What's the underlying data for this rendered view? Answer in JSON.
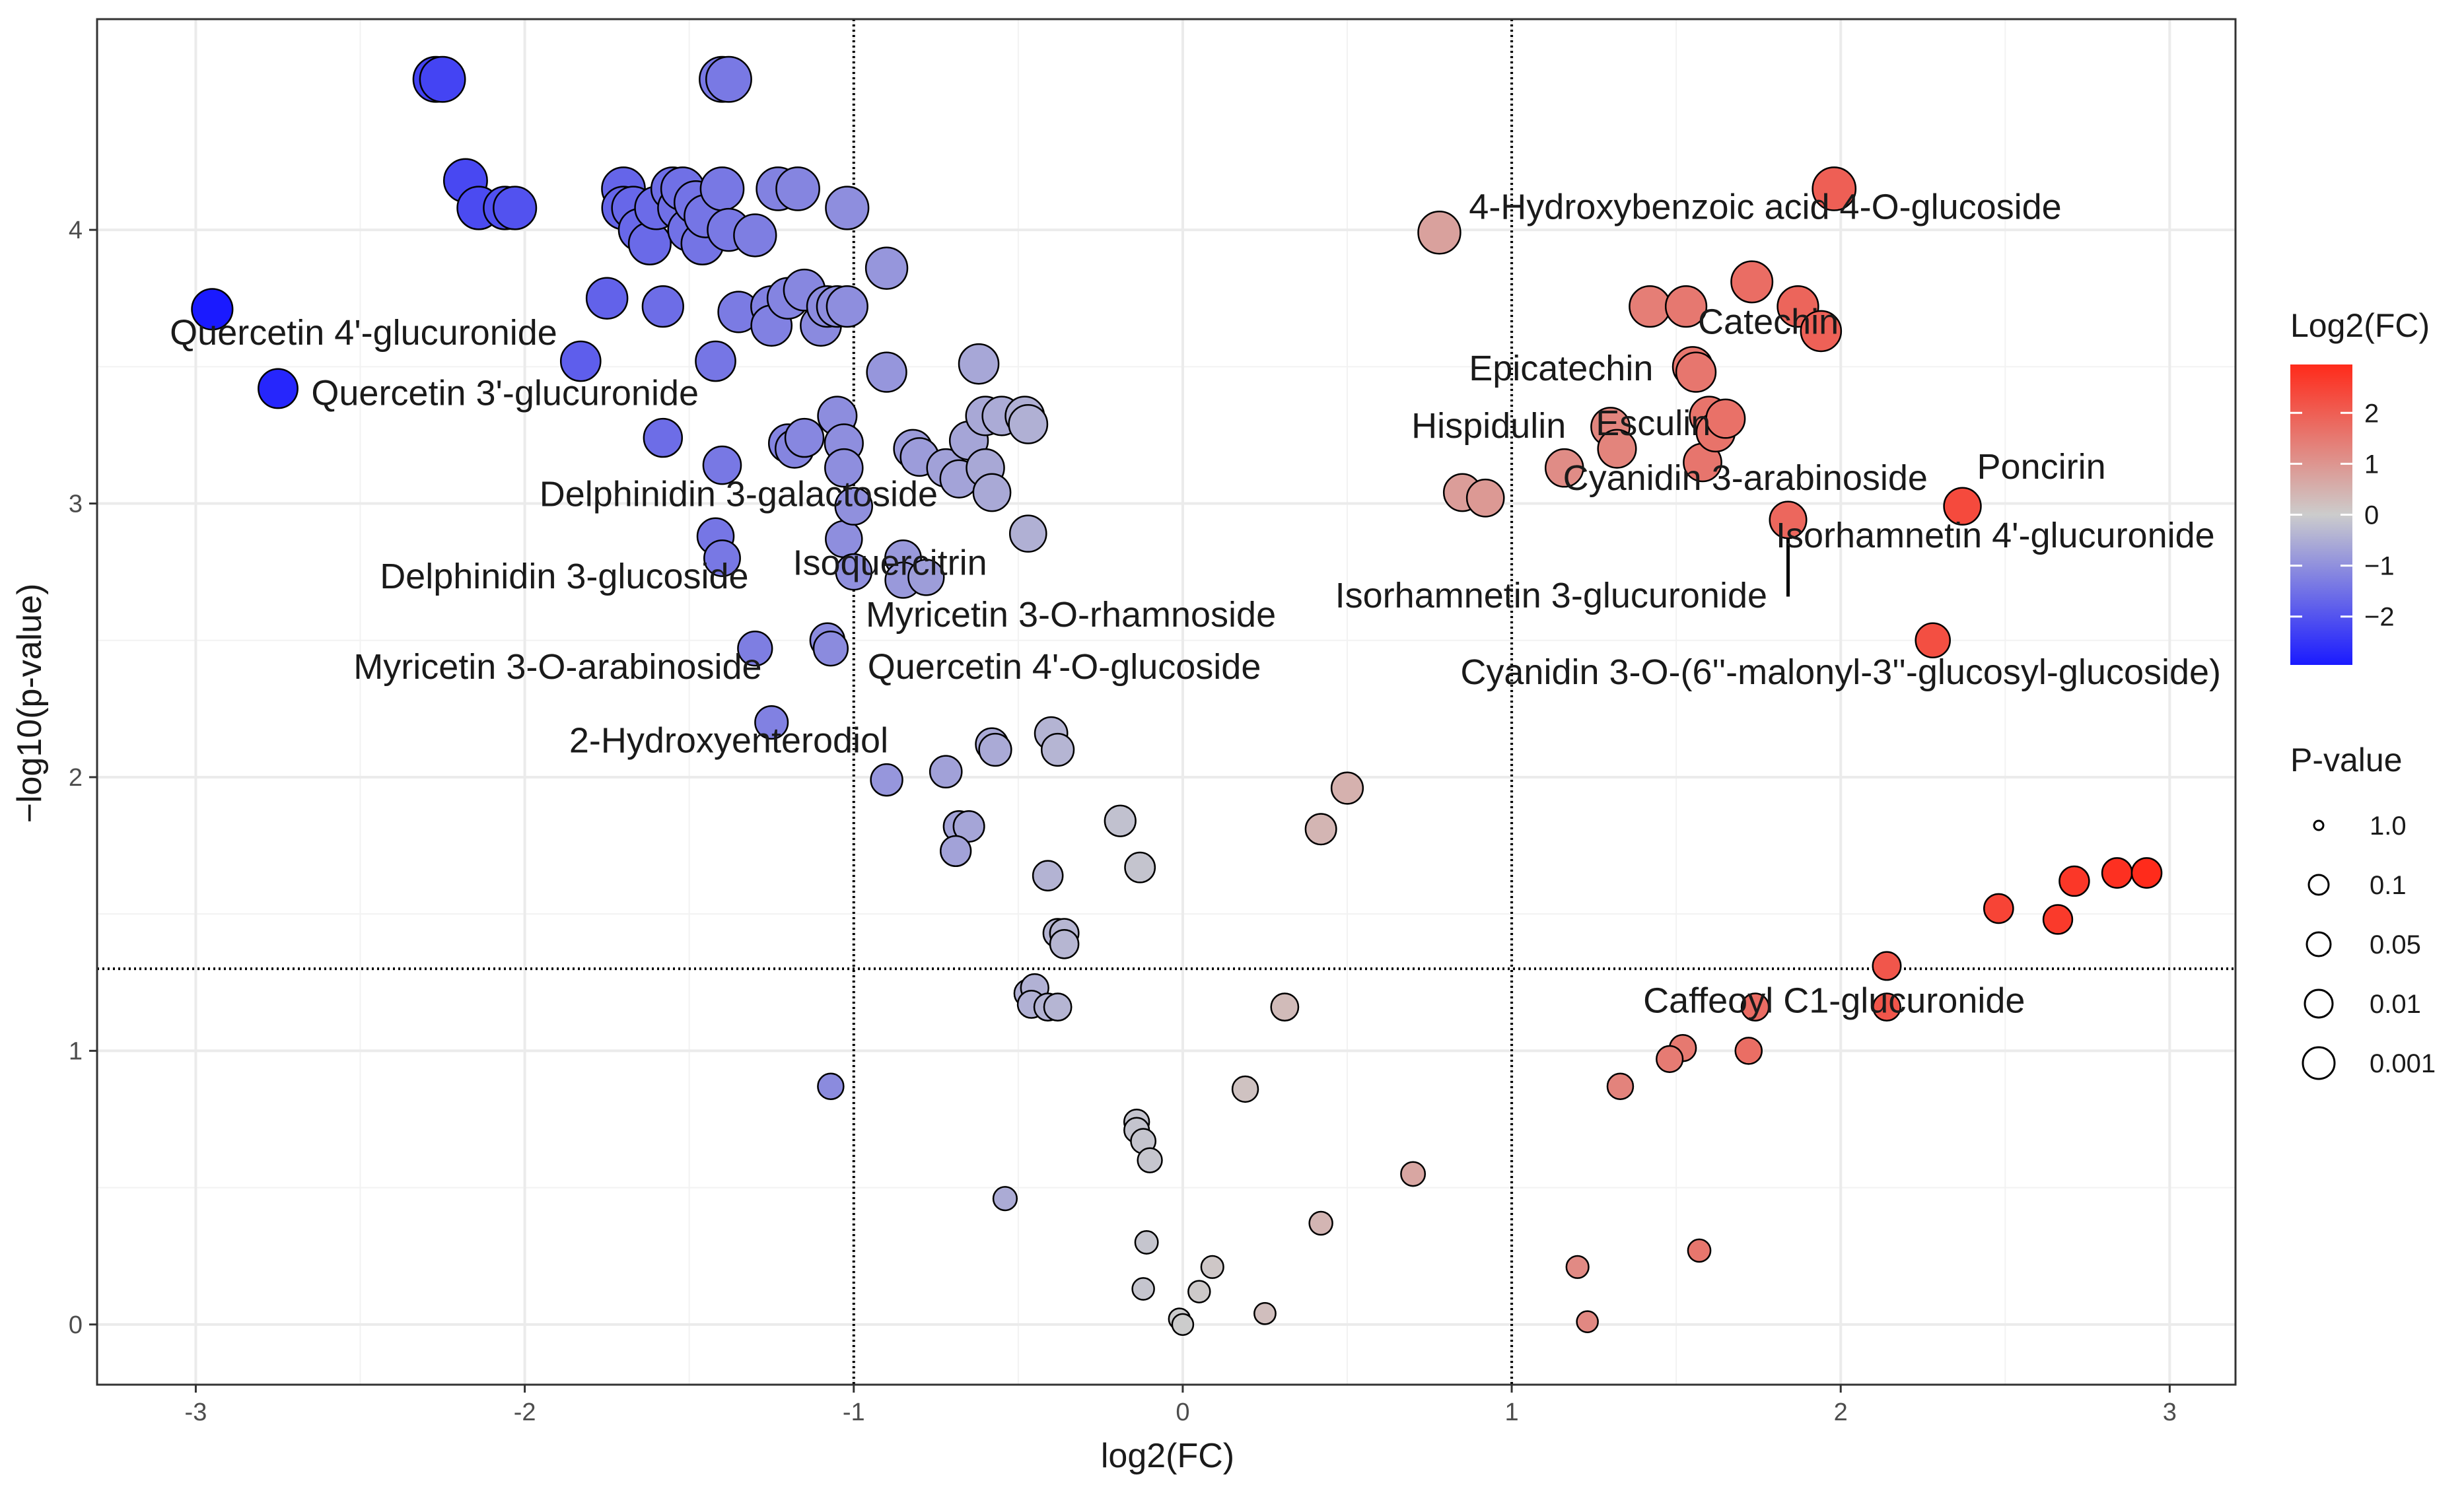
{
  "chart_data": {
    "type": "scatter",
    "title": "",
    "xlabel": "log2(FC)",
    "ylabel": "−log10(p-value)",
    "xlim": [
      -3.3,
      3.2
    ],
    "ylim": [
      -0.22,
      4.77
    ],
    "xticks": [
      -3,
      -2,
      -1,
      0,
      1,
      2,
      3
    ],
    "xtick_labels": [
      "-3",
      "-2",
      "-1",
      "0",
      "1",
      "2",
      "3"
    ],
    "yticks": [
      0,
      1,
      2,
      3,
      4
    ],
    "ytick_labels": [
      "0",
      "1",
      "2",
      "3",
      "4"
    ],
    "grid": true,
    "thresholds": {
      "x": [
        -1,
        1
      ],
      "y": [
        1.3
      ]
    },
    "color_legend": {
      "title": "Log2(FC)",
      "ticks": [
        2,
        1,
        0,
        -1,
        -2
      ],
      "tick_labels": [
        "2",
        "1",
        "0",
        "−1",
        "−2"
      ],
      "range": [
        -2.95,
        2.95
      ],
      "colors": {
        "low": "#1a1aff",
        "mid": "#cccccc",
        "high": "#ff2a1a"
      }
    },
    "size_legend": {
      "title": "P-value",
      "entries": [
        "1.0",
        "0.1",
        "0.05",
        "0.01",
        "0.001"
      ]
    },
    "points": [
      [
        -2.95,
        3.71
      ],
      [
        -2.75,
        3.42
      ],
      [
        -2.27,
        4.55
      ],
      [
        -2.25,
        4.55
      ],
      [
        -2.18,
        4.18
      ],
      [
        -2.14,
        4.08
      ],
      [
        -2.06,
        4.08
      ],
      [
        -2.03,
        4.08
      ],
      [
        -1.83,
        3.52
      ],
      [
        -1.75,
        3.75
      ],
      [
        -1.7,
        4.15
      ],
      [
        -1.7,
        4.08
      ],
      [
        -1.67,
        4.08
      ],
      [
        -1.65,
        4.0
      ],
      [
        -1.62,
        3.95
      ],
      [
        -1.6,
        4.08
      ],
      [
        -1.58,
        3.72
      ],
      [
        -1.58,
        3.24
      ],
      [
        -1.55,
        4.15
      ],
      [
        -1.53,
        4.08
      ],
      [
        -1.52,
        4.15
      ],
      [
        -1.5,
        4.0
      ],
      [
        -1.48,
        4.1
      ],
      [
        -1.46,
        3.95
      ],
      [
        -1.45,
        4.05
      ],
      [
        -1.42,
        3.52
      ],
      [
        -1.4,
        4.55
      ],
      [
        -1.38,
        4.55
      ],
      [
        -1.4,
        4.15
      ],
      [
        -1.38,
        4.0
      ],
      [
        -1.35,
        3.7
      ],
      [
        -1.3,
        3.98
      ],
      [
        -1.25,
        3.72
      ],
      [
        -1.25,
        3.65
      ],
      [
        -1.23,
        4.15
      ],
      [
        -1.2,
        3.75
      ],
      [
        -1.17,
        4.15
      ],
      [
        -1.15,
        3.78
      ],
      [
        -1.1,
        3.65
      ],
      [
        -1.08,
        3.72
      ],
      [
        -1.05,
        3.72
      ],
      [
        -1.02,
        4.08
      ],
      [
        -1.02,
        3.72
      ],
      [
        -1.4,
        3.14
      ],
      [
        -1.42,
        2.88
      ],
      [
        -1.4,
        2.8
      ],
      [
        -1.3,
        2.47
      ],
      [
        -1.25,
        2.2
      ],
      [
        -1.2,
        3.22
      ],
      [
        -1.18,
        3.2
      ],
      [
        -1.15,
        3.24
      ],
      [
        -1.08,
        2.5
      ],
      [
        -1.07,
        2.47
      ],
      [
        -1.05,
        3.32
      ],
      [
        -1.03,
        3.22
      ],
      [
        -1.03,
        3.13
      ],
      [
        -1.03,
        2.87
      ],
      [
        -1.0,
        2.99
      ],
      [
        -1.0,
        2.75
      ],
      [
        -0.9,
        3.86
      ],
      [
        -0.9,
        3.48
      ],
      [
        -0.9,
        1.99
      ],
      [
        -0.85,
        2.8
      ],
      [
        -0.85,
        2.72
      ],
      [
        -0.82,
        3.2
      ],
      [
        -0.8,
        3.17
      ],
      [
        -0.78,
        2.73
      ],
      [
        -0.72,
        3.13
      ],
      [
        -0.68,
        3.09
      ],
      [
        -0.65,
        3.23
      ],
      [
        -0.62,
        3.51
      ],
      [
        -0.6,
        3.32
      ],
      [
        -0.6,
        3.13
      ],
      [
        -0.58,
        3.04
      ],
      [
        -0.55,
        3.32
      ],
      [
        -0.48,
        3.32
      ],
      [
        -0.47,
        3.29
      ],
      [
        -0.47,
        2.89
      ],
      [
        -0.72,
        2.02
      ],
      [
        -0.68,
        1.82
      ],
      [
        -0.65,
        1.82
      ],
      [
        -0.69,
        1.73
      ],
      [
        -0.58,
        2.12
      ],
      [
        -0.57,
        2.1
      ],
      [
        -0.4,
        2.16
      ],
      [
        -0.38,
        2.1
      ],
      [
        -0.41,
        1.64
      ],
      [
        -0.38,
        1.43
      ],
      [
        -0.36,
        1.43
      ],
      [
        -0.36,
        1.39
      ],
      [
        -0.47,
        1.21
      ],
      [
        -0.45,
        1.23
      ],
      [
        -0.46,
        1.17
      ],
      [
        -0.41,
        1.16
      ],
      [
        -0.38,
        1.16
      ],
      [
        -1.07,
        0.87
      ],
      [
        -0.54,
        0.46
      ],
      [
        -0.19,
        1.84
      ],
      [
        -0.13,
        1.67
      ],
      [
        -0.14,
        0.74
      ],
      [
        -0.14,
        0.71
      ],
      [
        -0.12,
        0.67
      ],
      [
        -0.1,
        0.6
      ],
      [
        -0.11,
        0.3
      ],
      [
        -0.12,
        0.13
      ],
      [
        -0.01,
        0.02
      ],
      [
        0.0,
        0.0
      ],
      [
        0.05,
        0.12
      ],
      [
        0.09,
        0.21
      ],
      [
        0.25,
        0.04
      ],
      [
        0.19,
        0.86
      ],
      [
        0.31,
        1.16
      ],
      [
        0.42,
        1.81
      ],
      [
        0.42,
        0.37
      ],
      [
        0.5,
        1.96
      ],
      [
        0.7,
        0.55
      ],
      [
        0.78,
        3.99
      ],
      [
        0.85,
        3.04
      ],
      [
        0.92,
        3.02
      ],
      [
        1.16,
        3.13
      ],
      [
        1.3,
        3.28
      ],
      [
        1.32,
        3.2
      ],
      [
        1.42,
        3.72
      ],
      [
        1.53,
        3.72
      ],
      [
        1.55,
        3.5
      ],
      [
        1.56,
        3.48
      ],
      [
        1.58,
        3.15
      ],
      [
        1.6,
        3.32
      ],
      [
        1.62,
        3.26
      ],
      [
        1.65,
        3.31
      ],
      [
        1.73,
        3.81
      ],
      [
        1.84,
        2.94
      ],
      [
        1.87,
        3.72
      ],
      [
        1.94,
        3.63
      ],
      [
        1.98,
        4.15
      ],
      [
        2.28,
        2.5
      ],
      [
        2.37,
        2.99
      ],
      [
        2.14,
        1.31
      ],
      [
        2.14,
        1.16
      ],
      [
        1.74,
        1.16
      ],
      [
        1.72,
        1.0
      ],
      [
        1.52,
        1.01
      ],
      [
        1.48,
        0.97
      ],
      [
        1.33,
        0.87
      ],
      [
        1.57,
        0.27
      ],
      [
        1.2,
        0.21
      ],
      [
        1.23,
        0.01
      ],
      [
        2.48,
        1.52
      ],
      [
        2.66,
        1.48
      ],
      [
        2.71,
        1.62
      ],
      [
        2.84,
        1.65
      ],
      [
        2.93,
        1.65
      ]
    ],
    "annotations": [
      {
        "text": "4-Hydroxybenzoic acid 4-O-glucoside",
        "x": 0.87,
        "y": 4.04,
        "anchor": "start"
      },
      {
        "text": "Catechin",
        "x": 1.78,
        "y": 3.62,
        "anchor": "middle"
      },
      {
        "text": "Epicatechin",
        "x": 1.15,
        "y": 3.45,
        "anchor": "middle"
      },
      {
        "text": "Hispidulin",
        "x": 0.93,
        "y": 3.24,
        "anchor": "middle"
      },
      {
        "text": "Esculin",
        "x": 1.43,
        "y": 3.25,
        "anchor": "middle"
      },
      {
        "text": "Cyanidin 3-arabinoside",
        "x": 1.71,
        "y": 3.05,
        "anchor": "middle"
      },
      {
        "text": "Poncirin",
        "x": 2.61,
        "y": 3.09,
        "anchor": "middle"
      },
      {
        "text": "Isorhamnetin 4'-glucuronide",
        "x": 2.47,
        "y": 2.84,
        "anchor": "middle"
      },
      {
        "text": "Isorhamnetin 3-glucuronide",
        "x": 1.12,
        "y": 2.62,
        "anchor": "middle"
      },
      {
        "text": "Cyanidin 3-O-(6''-malonyl-3''-glucosyl-glucoside)",
        "x": 2.0,
        "y": 2.34,
        "anchor": "middle"
      },
      {
        "text": "Caffeoyl C1-glucuronide",
        "x": 1.98,
        "y": 1.14,
        "anchor": "middle"
      },
      {
        "text": "Quercetin 4'-glucuronide",
        "x": -2.49,
        "y": 3.58,
        "anchor": "middle"
      },
      {
        "text": "Quercetin 3'-glucuronide",
        "x": -2.06,
        "y": 3.36,
        "anchor": "middle"
      },
      {
        "text": "Delphinidin 3-galactoside",
        "x": -1.35,
        "y": 2.99,
        "anchor": "middle"
      },
      {
        "text": "Delphinidin 3-glucoside",
        "x": -1.88,
        "y": 2.69,
        "anchor": "middle"
      },
      {
        "text": "Isoquercitrin",
        "x": -0.89,
        "y": 2.74,
        "anchor": "middle"
      },
      {
        "text": "Myricetin 3-O-rhamnoside",
        "x": -0.34,
        "y": 2.55,
        "anchor": "middle"
      },
      {
        "text": "Myricetin 3-O-arabinoside",
        "x": -1.9,
        "y": 2.36,
        "anchor": "middle"
      },
      {
        "text": "Quercetin 4'-O-glucoside",
        "x": -0.36,
        "y": 2.36,
        "anchor": "middle"
      },
      {
        "text": "2-Hydroxyenterodiol",
        "x": -1.38,
        "y": 2.09,
        "anchor": "middle"
      }
    ],
    "segments": [
      {
        "from": [
          1.84,
          2.94
        ],
        "to": [
          1.84,
          2.66
        ]
      }
    ]
  }
}
